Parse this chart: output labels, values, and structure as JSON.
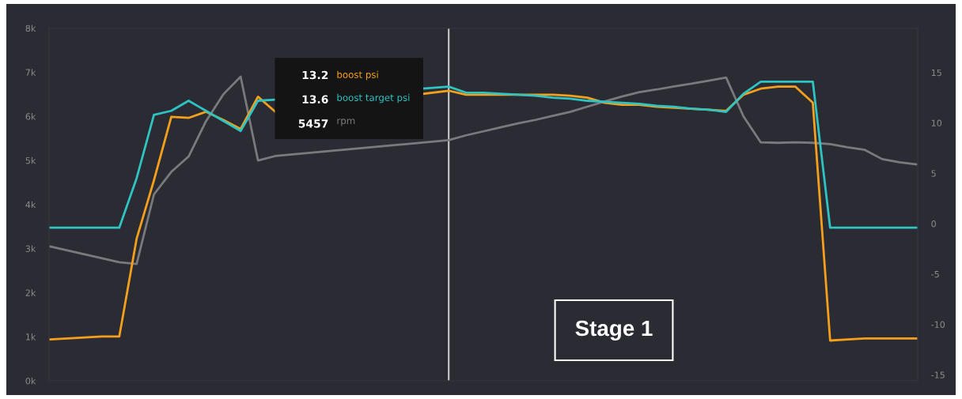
{
  "chart_data": {
    "type": "line",
    "categories": [
      null,
      null,
      null,
      null,
      null,
      null,
      null,
      null,
      null,
      null,
      null,
      null,
      null,
      null,
      null,
      null,
      null,
      null,
      null,
      null,
      null,
      null,
      null,
      null,
      null,
      null,
      null,
      null,
      null,
      null,
      null,
      null,
      null,
      null,
      null,
      null,
      null,
      null,
      null,
      null,
      null,
      null,
      null,
      null,
      null,
      null,
      null,
      null,
      null,
      null,
      null
    ],
    "series": [
      {
        "name": "boost psi",
        "color": "#f5a01c",
        "axis": "y2",
        "values": [
          -11.5,
          -11.4,
          -11.3,
          -11.2,
          -11.2,
          -1.5,
          4.3,
          10.6,
          10.5,
          11.1,
          10.3,
          9.4,
          12.6,
          11.1,
          null,
          null,
          null,
          null,
          null,
          null,
          null,
          null,
          null,
          13.2,
          12.8,
          12.8,
          12.8,
          12.8,
          12.8,
          12.8,
          12.7,
          12.5,
          12.0,
          11.8,
          11.8,
          11.6,
          11.5,
          11.4,
          11.3,
          11.2,
          12.8,
          13.4,
          13.6,
          13.6,
          12.0,
          -11.6,
          -11.5,
          -11.4,
          -11.4,
          -11.4,
          -11.4
        ]
      },
      {
        "name": "boost target psi",
        "color": "#2ec4c4",
        "axis": "y2",
        "values": [
          -0.4,
          -0.4,
          -0.4,
          -0.4,
          -0.4,
          4.5,
          10.8,
          11.2,
          12.2,
          11.2,
          10.2,
          9.2,
          12.2,
          12.3,
          null,
          null,
          null,
          null,
          null,
          null,
          null,
          null,
          null,
          13.6,
          13.0,
          13.0,
          12.9,
          12.8,
          12.7,
          12.5,
          12.4,
          12.2,
          12.1,
          12.0,
          11.9,
          11.7,
          11.6,
          11.4,
          11.3,
          11.1,
          12.9,
          14.1,
          14.1,
          14.1,
          14.1,
          -0.4,
          -0.4,
          -0.4,
          -0.4,
          -0.4,
          -0.4
        ]
      },
      {
        "name": "rpm",
        "color": "#7a7a7e",
        "values": [
          3050,
          2960,
          2870,
          2780,
          2690,
          2650,
          4230,
          4740,
          5090,
          5890,
          6500,
          6900,
          5000,
          5100,
          null,
          null,
          null,
          null,
          null,
          null,
          null,
          null,
          null,
          5460,
          5570,
          5660,
          5750,
          5840,
          5920,
          6010,
          6100,
          6220,
          6340,
          6450,
          6550,
          6610,
          6680,
          6740,
          6810,
          6880,
          6000,
          5410,
          5400,
          5410,
          5400,
          5370,
          5300,
          5240,
          5030,
          4960,
          4910
        ]
      }
    ],
    "ylim": [
      0,
      8000
    ],
    "yticks": [
      {
        "value": 0,
        "label": "0k"
      },
      {
        "value": 1000,
        "label": "1k"
      },
      {
        "value": 2000,
        "label": "2k"
      },
      {
        "value": 3000,
        "label": "3k"
      },
      {
        "value": 4000,
        "label": "4k"
      },
      {
        "value": 5000,
        "label": "5k"
      },
      {
        "value": 6000,
        "label": "6k"
      },
      {
        "value": 7000,
        "label": "7k"
      },
      {
        "value": 8000,
        "label": "8k"
      }
    ],
    "y2lim": [
      -15.6,
      19.4
    ],
    "y2ticks": [
      {
        "value": -15,
        "label": "-15"
      },
      {
        "value": -10,
        "label": "-10"
      },
      {
        "value": -5,
        "label": "-5"
      },
      0,
      5,
      10,
      15
    ],
    "annotations": [
      "13.2",
      "13.6",
      "5457",
      "Stage 1"
    ],
    "legend": "top",
    "tick_labels": "y",
    "grid": false,
    "marker": "none",
    "line_style": "solid"
  }
}
